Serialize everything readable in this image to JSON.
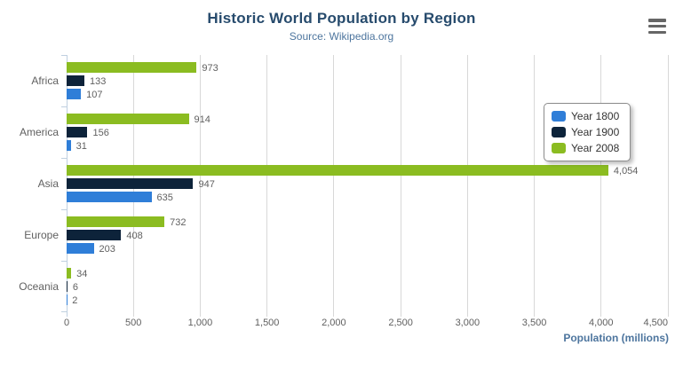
{
  "chart": {
    "context_menu_icon": "hamburger-menu-icon"
  },
  "chart_data": {
    "type": "bar",
    "orientation": "horizontal",
    "title": "Historic World Population by Region",
    "subtitle": "Source: Wikipedia.org",
    "categories": [
      "Africa",
      "America",
      "Asia",
      "Europe",
      "Oceania"
    ],
    "series": [
      {
        "name": "Year 1800",
        "color": "#2f7ed8",
        "values": [
          107,
          31,
          635,
          203,
          2
        ]
      },
      {
        "name": "Year 1900",
        "color": "#0d233a",
        "values": [
          133,
          156,
          947,
          408,
          6
        ]
      },
      {
        "name": "Year 2008",
        "color": "#8bbc21",
        "values": [
          973,
          914,
          4054,
          732,
          34
        ]
      }
    ],
    "series_display_order_top_to_bottom": [
      "Year 2008",
      "Year 1900",
      "Year 1800"
    ],
    "xlabel": "Population (millions)",
    "ylabel": "",
    "xlim": [
      0,
      4500
    ],
    "x_ticks": [
      0,
      500,
      1000,
      1500,
      2000,
      2500,
      3000,
      3500,
      4000,
      4500
    ],
    "x_tick_labels": [
      "0",
      "500",
      "1,000",
      "1,500",
      "2,000",
      "2,500",
      "3,000",
      "3,500",
      "4,000",
      "4,500"
    ],
    "grid": true,
    "legend_position": "right-inside",
    "data_labels": true
  },
  "colors": {
    "title": "#274b6d",
    "subtitle": "#4d759e",
    "axis_title": "#4d759e",
    "tick_label": "#606060",
    "category_label": "#606060",
    "data_label": "#606060",
    "gridline": "#d8d8d8",
    "axis_line": "#c0d0e0",
    "legend_border": "#8c8c8c",
    "legend_text": "#333333",
    "menu_icon": "#666666",
    "background": "#ffffff"
  }
}
